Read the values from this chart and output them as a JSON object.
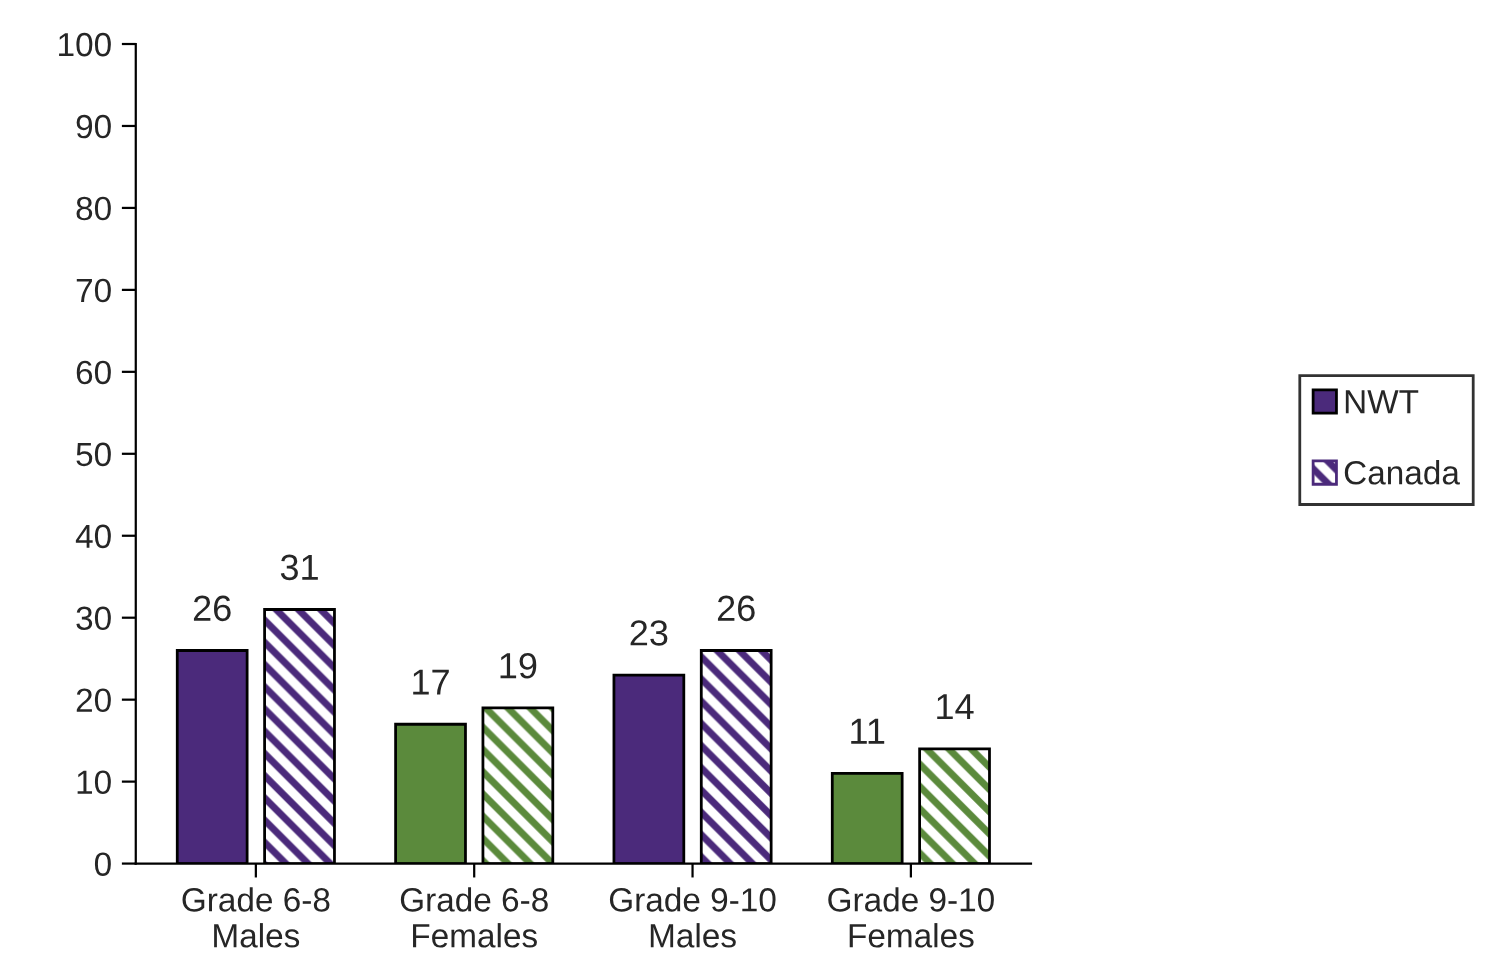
{
  "chart_data": {
    "type": "bar",
    "categories": [
      "Grade 6-8\nMales",
      "Grade 6-8\nFemales",
      "Grade 9-10\nMales",
      "Grade 9-10\nFemales"
    ],
    "series": [
      {
        "name": "NWT",
        "color": "#4b2a7b",
        "colors": [
          "#4b2a7b",
          "#5b8a3c",
          "#4b2a7b",
          "#5b8a3c"
        ],
        "values": [
          26,
          17,
          23,
          11
        ]
      },
      {
        "name": "Canada",
        "color": "#4b2a7b",
        "colors": [
          "#4b2a7b",
          "#5b8a3c",
          "#4b2a7b",
          "#5b8a3c"
        ],
        "values": [
          31,
          19,
          26,
          14
        ]
      }
    ],
    "ylim": [
      0,
      100
    ],
    "yticks": [
      0,
      10,
      20,
      30,
      40,
      50,
      60,
      70,
      80,
      90,
      100
    ],
    "grid": false,
    "legend": "right",
    "data_labels": true
  }
}
